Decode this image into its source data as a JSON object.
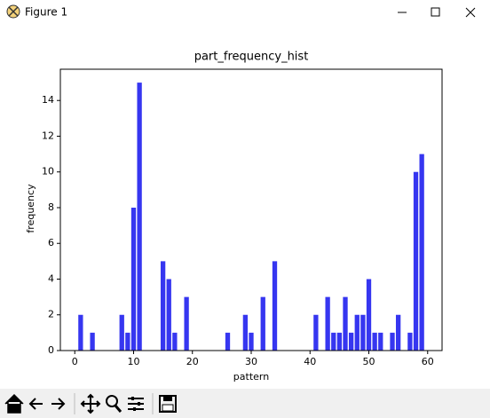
{
  "window": {
    "title": "Figure 1"
  },
  "chart_data": {
    "type": "bar",
    "title": "part_frequency_hist",
    "x_label": "pattern",
    "y_label": "frequency",
    "x": [
      1,
      3,
      8,
      9,
      10,
      11,
      15,
      16,
      17,
      19,
      26,
      29,
      30,
      32,
      34,
      41,
      43,
      44,
      45,
      46,
      47,
      48,
      49,
      50,
      51,
      52,
      54,
      55,
      57,
      58,
      59
    ],
    "values": [
      2,
      1,
      2,
      1,
      8,
      15,
      5,
      4,
      1,
      3,
      1,
      2,
      1,
      3,
      5,
      2,
      3,
      1,
      1,
      3,
      1,
      2,
      2,
      4,
      1,
      1,
      1,
      2,
      1,
      10,
      11
    ],
    "color": "#3636f0",
    "xlim": [
      -2.45,
      62.45
    ],
    "xticks": [
      0,
      10,
      20,
      30,
      40,
      50,
      60
    ],
    "ylim": [
      0,
      15.75
    ],
    "yticks": [
      0,
      2,
      4,
      6,
      8,
      10,
      12,
      14
    ]
  }
}
